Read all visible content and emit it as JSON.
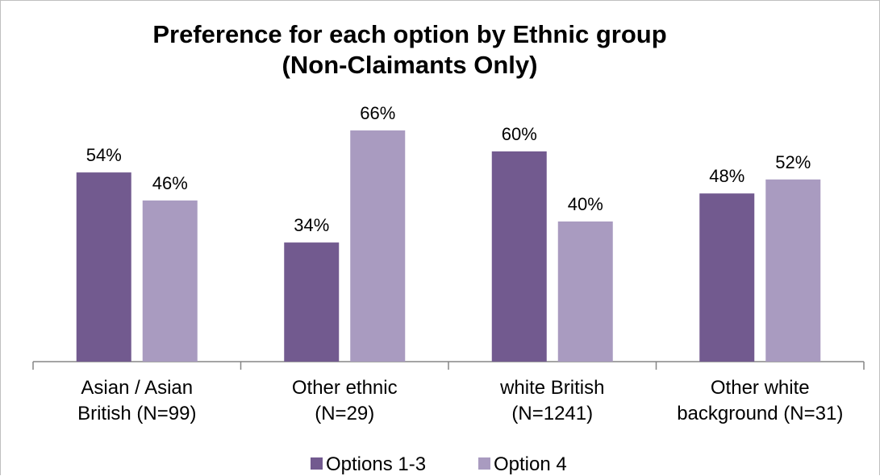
{
  "chart_data": {
    "type": "bar",
    "title": "Preference for each option by Ethnic group",
    "subtitle": "(Non-Claimants Only)",
    "categories": [
      [
        "Asian / Asian",
        "British (N=99)"
      ],
      [
        "Other ethnic",
        "(N=29)"
      ],
      [
        "white British",
        "(N=1241)"
      ],
      [
        "Other white",
        "background (N=31)"
      ]
    ],
    "series": [
      {
        "name": "Options 1-3",
        "color": "#725a8f",
        "values": [
          54,
          34,
          60,
          48
        ],
        "labels": [
          "54%",
          "34%",
          "60%",
          "48%"
        ]
      },
      {
        "name": "Option 4",
        "color": "#a99bc0",
        "values": [
          46,
          66,
          40,
          52
        ],
        "labels": [
          "46%",
          "66%",
          "40%",
          "52%"
        ]
      }
    ],
    "ylim": [
      0,
      100
    ],
    "value_unit": "%",
    "grid": false,
    "legend_position": "bottom",
    "xlabel": "",
    "ylabel": ""
  }
}
